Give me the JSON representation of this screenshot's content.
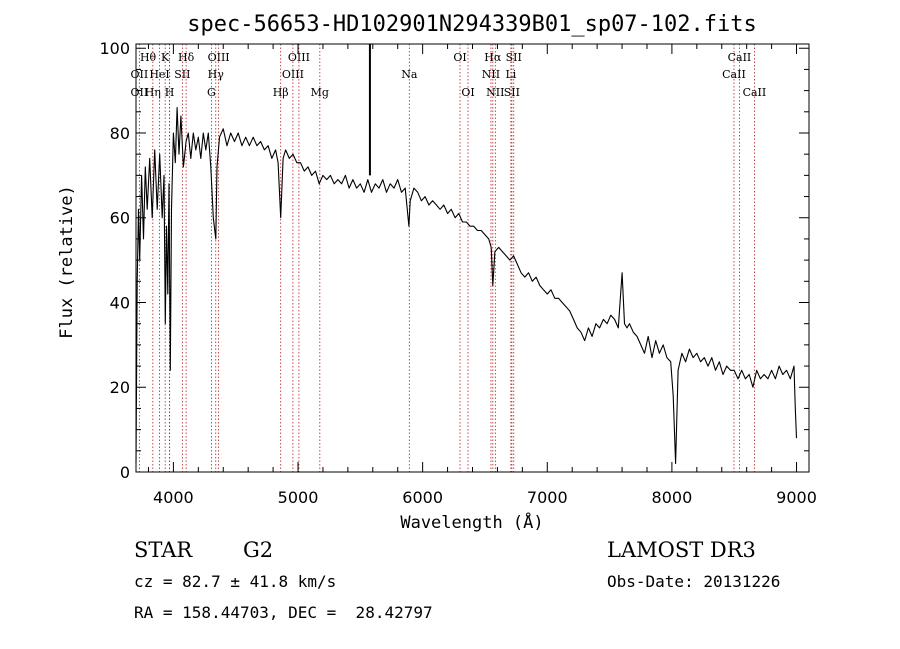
{
  "chart_data": {
    "type": "line",
    "title": "spec-56653-HD102901N294339B01_sp07-102.fits",
    "xlabel": "Wavelength (Å)",
    "ylabel": "Flux (relative)",
    "xlim": [
      3700,
      9100
    ],
    "ylim": [
      0,
      101
    ],
    "xticks": [
      4000,
      5000,
      6000,
      7000,
      8000,
      9000
    ],
    "yticks": [
      0,
      20,
      40,
      60,
      80,
      100
    ],
    "grid": false,
    "series": [
      {
        "name": "flux",
        "points": [
          [
            3700,
            2
          ],
          [
            3710,
            45
          ],
          [
            3720,
            62
          ],
          [
            3730,
            50
          ],
          [
            3745,
            70
          ],
          [
            3760,
            55
          ],
          [
            3775,
            72
          ],
          [
            3790,
            62
          ],
          [
            3810,
            74
          ],
          [
            3830,
            60
          ],
          [
            3850,
            76
          ],
          [
            3870,
            62
          ],
          [
            3890,
            75
          ],
          [
            3910,
            60
          ],
          [
            3925,
            70
          ],
          [
            3935,
            35
          ],
          [
            3945,
            58
          ],
          [
            3955,
            42
          ],
          [
            3965,
            68
          ],
          [
            3975,
            24
          ],
          [
            3985,
            62
          ],
          [
            4000,
            80
          ],
          [
            4015,
            73
          ],
          [
            4030,
            86
          ],
          [
            4045,
            75
          ],
          [
            4060,
            84
          ],
          [
            4080,
            72
          ],
          [
            4102,
            78
          ],
          [
            4120,
            80
          ],
          [
            4140,
            74
          ],
          [
            4160,
            80
          ],
          [
            4180,
            76
          ],
          [
            4200,
            79
          ],
          [
            4220,
            74
          ],
          [
            4240,
            80
          ],
          [
            4260,
            76
          ],
          [
            4280,
            80
          ],
          [
            4300,
            72
          ],
          [
            4320,
            60
          ],
          [
            4340,
            55
          ],
          [
            4350,
            72
          ],
          [
            4370,
            79
          ],
          [
            4400,
            81
          ],
          [
            4430,
            77
          ],
          [
            4460,
            80
          ],
          [
            4490,
            78
          ],
          [
            4520,
            80
          ],
          [
            4550,
            77
          ],
          [
            4580,
            79
          ],
          [
            4610,
            77
          ],
          [
            4640,
            79
          ],
          [
            4670,
            77
          ],
          [
            4700,
            78
          ],
          [
            4730,
            76
          ],
          [
            4760,
            77
          ],
          [
            4790,
            74
          ],
          [
            4820,
            76
          ],
          [
            4840,
            73
          ],
          [
            4861,
            60
          ],
          [
            4880,
            74
          ],
          [
            4900,
            76
          ],
          [
            4930,
            74
          ],
          [
            4960,
            75
          ],
          [
            4990,
            73
          ],
          [
            5020,
            73
          ],
          [
            5050,
            71
          ],
          [
            5080,
            72
          ],
          [
            5110,
            70
          ],
          [
            5140,
            71
          ],
          [
            5170,
            68
          ],
          [
            5200,
            70
          ],
          [
            5230,
            69
          ],
          [
            5260,
            70
          ],
          [
            5290,
            68
          ],
          [
            5320,
            69
          ],
          [
            5350,
            68
          ],
          [
            5380,
            70
          ],
          [
            5410,
            67
          ],
          [
            5440,
            69
          ],
          [
            5470,
            67
          ],
          [
            5500,
            68
          ],
          [
            5530,
            66
          ],
          [
            5560,
            69
          ],
          [
            5590,
            66
          ],
          [
            5620,
            68
          ],
          [
            5650,
            67
          ],
          [
            5680,
            69
          ],
          [
            5710,
            66
          ],
          [
            5740,
            68
          ],
          [
            5770,
            67
          ],
          [
            5800,
            69
          ],
          [
            5830,
            66
          ],
          [
            5860,
            67
          ],
          [
            5890,
            58
          ],
          [
            5900,
            64
          ],
          [
            5930,
            67
          ],
          [
            5960,
            66
          ],
          [
            5990,
            64
          ],
          [
            6020,
            65
          ],
          [
            6050,
            63
          ],
          [
            6080,
            64
          ],
          [
            6110,
            63
          ],
          [
            6140,
            62
          ],
          [
            6170,
            63
          ],
          [
            6200,
            61
          ],
          [
            6230,
            62
          ],
          [
            6260,
            60
          ],
          [
            6290,
            61
          ],
          [
            6320,
            59
          ],
          [
            6350,
            59
          ],
          [
            6380,
            58
          ],
          [
            6410,
            58
          ],
          [
            6440,
            57
          ],
          [
            6470,
            57
          ],
          [
            6500,
            56
          ],
          [
            6530,
            55
          ],
          [
            6550,
            53
          ],
          [
            6563,
            44
          ],
          [
            6580,
            52
          ],
          [
            6610,
            53
          ],
          [
            6640,
            52
          ],
          [
            6670,
            51
          ],
          [
            6700,
            50
          ],
          [
            6730,
            51
          ],
          [
            6760,
            49
          ],
          [
            6790,
            47
          ],
          [
            6820,
            46
          ],
          [
            6850,
            47
          ],
          [
            6880,
            45
          ],
          [
            6910,
            46
          ],
          [
            6940,
            44
          ],
          [
            6970,
            43
          ],
          [
            7000,
            42
          ],
          [
            7030,
            43
          ],
          [
            7060,
            41
          ],
          [
            7090,
            41
          ],
          [
            7120,
            40
          ],
          [
            7150,
            39
          ],
          [
            7180,
            38
          ],
          [
            7210,
            36
          ],
          [
            7240,
            34
          ],
          [
            7270,
            33
          ],
          [
            7300,
            31
          ],
          [
            7330,
            34
          ],
          [
            7360,
            32
          ],
          [
            7390,
            35
          ],
          [
            7420,
            34
          ],
          [
            7450,
            36
          ],
          [
            7480,
            35
          ],
          [
            7510,
            37
          ],
          [
            7540,
            36
          ],
          [
            7570,
            34
          ],
          [
            7600,
            47
          ],
          [
            7620,
            35
          ],
          [
            7640,
            34
          ],
          [
            7660,
            35
          ],
          [
            7690,
            33
          ],
          [
            7720,
            32
          ],
          [
            7750,
            30
          ],
          [
            7780,
            28
          ],
          [
            7810,
            32
          ],
          [
            7840,
            27
          ],
          [
            7870,
            31
          ],
          [
            7900,
            28
          ],
          [
            7930,
            30
          ],
          [
            7960,
            27
          ],
          [
            7990,
            26
          ],
          [
            8010,
            18
          ],
          [
            8030,
            2
          ],
          [
            8050,
            24
          ],
          [
            8080,
            28
          ],
          [
            8110,
            26
          ],
          [
            8140,
            29
          ],
          [
            8170,
            27
          ],
          [
            8200,
            28
          ],
          [
            8230,
            26
          ],
          [
            8260,
            27
          ],
          [
            8290,
            25
          ],
          [
            8320,
            27
          ],
          [
            8350,
            24
          ],
          [
            8380,
            26
          ],
          [
            8410,
            23
          ],
          [
            8440,
            25
          ],
          [
            8470,
            24
          ],
          [
            8500,
            24
          ],
          [
            8530,
            22
          ],
          [
            8560,
            24
          ],
          [
            8590,
            22
          ],
          [
            8620,
            23
          ],
          [
            8650,
            20
          ],
          [
            8680,
            24
          ],
          [
            8710,
            22
          ],
          [
            8740,
            23
          ],
          [
            8770,
            22
          ],
          [
            8800,
            24
          ],
          [
            8830,
            22
          ],
          [
            8860,
            25
          ],
          [
            8890,
            23
          ],
          [
            8920,
            24
          ],
          [
            8950,
            22
          ],
          [
            8980,
            25
          ],
          [
            8990,
            15
          ],
          [
            9000,
            8
          ]
        ]
      }
    ],
    "spike": {
      "x": 5577,
      "y_from": 70,
      "y_to": 101
    },
    "lines": [
      {
        "name": "CaII K",
        "wavelength": 3934
      },
      {
        "name": "CaII H",
        "wavelength": 3969
      },
      {
        "name": "H-delta",
        "wavelength": 4102
      },
      {
        "name": "H-gamma",
        "wavelength": 4340
      },
      {
        "name": "H-beta",
        "wavelength": 4861
      },
      {
        "name": "OIII 4959",
        "wavelength": 4959
      },
      {
        "name": "OIII 5007",
        "wavelength": 5007
      },
      {
        "name": "Mg",
        "wavelength": 5175
      },
      {
        "name": "Na",
        "wavelength": 5893
      },
      {
        "name": "OI 6300",
        "wavelength": 6300
      },
      {
        "name": "OI 6364",
        "wavelength": 6364
      },
      {
        "name": "NII 6548",
        "wavelength": 6548
      },
      {
        "name": "H-alpha",
        "wavelength": 6563
      },
      {
        "name": "NII 6583",
        "wavelength": 6583
      },
      {
        "name": "Li",
        "wavelength": 6708
      },
      {
        "name": "SII 6716",
        "wavelength": 6716
      },
      {
        "name": "SII 6731",
        "wavelength": 6731
      },
      {
        "name": "CaII 8498",
        "wavelength": 8498
      },
      {
        "name": "CaII 8542",
        "wavelength": 8542
      },
      {
        "name": "CaII 8662",
        "wavelength": 8662
      },
      {
        "name": "OII",
        "wavelength": 3727
      },
      {
        "name": "H-eta",
        "wavelength": 3835
      },
      {
        "name": "HeI",
        "wavelength": 3889
      },
      {
        "name": "SII 4072",
        "wavelength": 4072
      },
      {
        "name": "G",
        "wavelength": 4305
      },
      {
        "name": "OIII 4363",
        "wavelength": 4363
      },
      {
        "name": "H-epsilon",
        "wavelength": 3970
      }
    ],
    "line_labels": [
      {
        "text": "Hθ",
        "wavelength": 3797,
        "row": 0
      },
      {
        "text": "K",
        "wavelength": 3934,
        "row": 0
      },
      {
        "text": "Hδ",
        "wavelength": 4102,
        "row": 0
      },
      {
        "text": "OIII",
        "wavelength": 4363,
        "row": 0
      },
      {
        "text": "OIII",
        "wavelength": 5007,
        "row": 0
      },
      {
        "text": "OI",
        "wavelength": 6300,
        "row": 0
      },
      {
        "text": "Hα",
        "wavelength": 6563,
        "row": 0
      },
      {
        "text": "SII",
        "wavelength": 6731,
        "row": 0
      },
      {
        "text": "CaII",
        "wavelength": 8542,
        "row": 0
      },
      {
        "text": "OII",
        "wavelength": 3727,
        "row": 1
      },
      {
        "text": "HeI",
        "wavelength": 3889,
        "row": 1
      },
      {
        "text": "SII",
        "wavelength": 4072,
        "row": 1
      },
      {
        "text": "Hγ",
        "wavelength": 4340,
        "row": 1
      },
      {
        "text": "OIII",
        "wavelength": 4959,
        "row": 1
      },
      {
        "text": "Na",
        "wavelength": 5893,
        "row": 1
      },
      {
        "text": "NII",
        "wavelength": 6548,
        "row": 1
      },
      {
        "text": "Li",
        "wavelength": 6708,
        "row": 1
      },
      {
        "text": "CaII",
        "wavelength": 8498,
        "row": 1
      },
      {
        "text": "OII",
        "wavelength": 3727,
        "row": 2
      },
      {
        "text": "Hη",
        "wavelength": 3835,
        "row": 2
      },
      {
        "text": "H",
        "wavelength": 3969,
        "row": 2
      },
      {
        "text": "G",
        "wavelength": 4305,
        "row": 2
      },
      {
        "text": "Hβ",
        "wavelength": 4861,
        "row": 2
      },
      {
        "text": "Mg",
        "wavelength": 5175,
        "row": 2
      },
      {
        "text": "OI",
        "wavelength": 6364,
        "row": 2
      },
      {
        "text": "NII",
        "wavelength": 6583,
        "row": 2
      },
      {
        "text": "SII",
        "wavelength": 6716,
        "row": 2
      },
      {
        "text": "CaII",
        "wavelength": 8662,
        "row": 2
      }
    ],
    "colors": {
      "spectrum": "#000000",
      "line_markers": "#b22222",
      "axes": "#000000"
    }
  },
  "info": {
    "object_class": "STAR",
    "subclass": "G2",
    "survey": "LAMOST DR3",
    "redshift": "cz = 82.7 ± 41.8 km/s",
    "obs_date": "Obs-Date: 20131226",
    "coords": "RA = 158.44703, DEC =  28.42797"
  }
}
